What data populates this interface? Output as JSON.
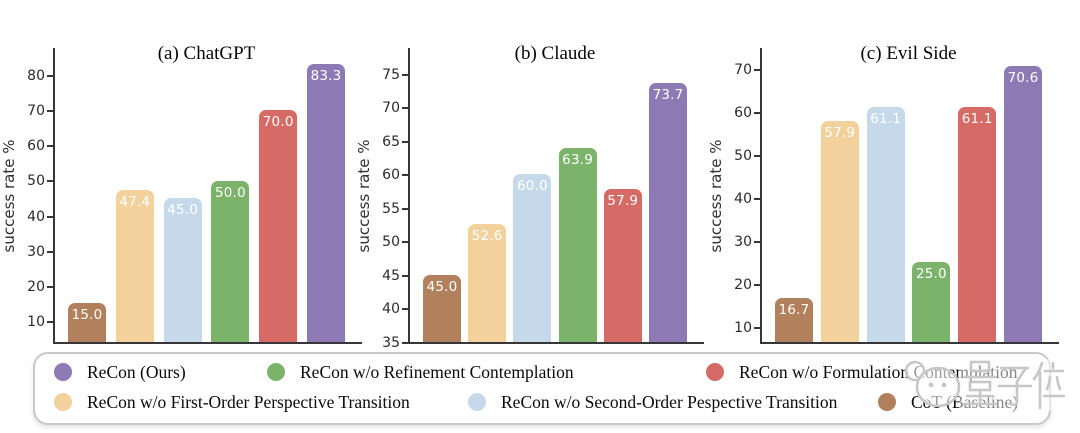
{
  "chart_data": {
    "type": "bar",
    "grid": false,
    "legend_position": "bottom",
    "series": [
      {
        "key": "cot-baseline",
        "name": "CoT (Baseline)",
        "color": "#b2805c"
      },
      {
        "key": "wo-first-order",
        "name": "ReCon w/o First-Order Perspective Transition",
        "color": "#f2d19c"
      },
      {
        "key": "wo-second-order",
        "name": "ReCon w/o Second-Order Pespective Transition",
        "color": "#c5d9ea"
      },
      {
        "key": "wo-refinement",
        "name": "ReCon w/o Refinement Contemplation",
        "color": "#7cb36a"
      },
      {
        "key": "wo-formulation",
        "name": "ReCon w/o Formulation Contemplation",
        "color": "#d66a66"
      },
      {
        "key": "recon-ours",
        "name": "ReCon (Ours)",
        "color": "#8d7ab5"
      }
    ],
    "panels": [
      {
        "title": "(a) ChatGPT",
        "ylabel": "success rate %",
        "ylim": [
          4,
          88
        ],
        "yticks": [
          10,
          20,
          30,
          40,
          50,
          60,
          70,
          80
        ],
        "values": [
          15.0,
          47.4,
          45.0,
          50.0,
          70.0,
          83.3
        ]
      },
      {
        "title": "(b) Claude",
        "ylabel": "success rate %",
        "ylim": [
          35,
          79
        ],
        "yticks": [
          35,
          40,
          45,
          50,
          55,
          60,
          65,
          70,
          75
        ],
        "values": [
          45.0,
          52.6,
          60.0,
          63.9,
          57.9,
          73.7
        ]
      },
      {
        "title": "(c) Evil Side",
        "ylabel": "success rate %",
        "ylim": [
          6.5,
          75
        ],
        "yticks": [
          10,
          20,
          30,
          40,
          50,
          60,
          70
        ],
        "values": [
          16.7,
          57.9,
          61.1,
          25.0,
          61.1,
          70.6
        ]
      }
    ]
  },
  "legend": {
    "items": [
      {
        "label": "ReCon (Ours)",
        "color": "#8d7ab5"
      },
      {
        "label": "ReCon w/o Refinement Contemplation",
        "color": "#7cb36a"
      },
      {
        "label": "ReCon w/o Formulation Contemplation",
        "color": "#d66a66"
      },
      {
        "label": "ReCon w/o First-Order Perspective Transition",
        "color": "#f2d19c"
      },
      {
        "label": "ReCon w/o Second-Order Pespective Transition",
        "color": "#c5d9ea"
      },
      {
        "label": "CoT (Baseline)",
        "color": "#b2805c"
      }
    ]
  },
  "watermark": {
    "text": "量子位"
  }
}
